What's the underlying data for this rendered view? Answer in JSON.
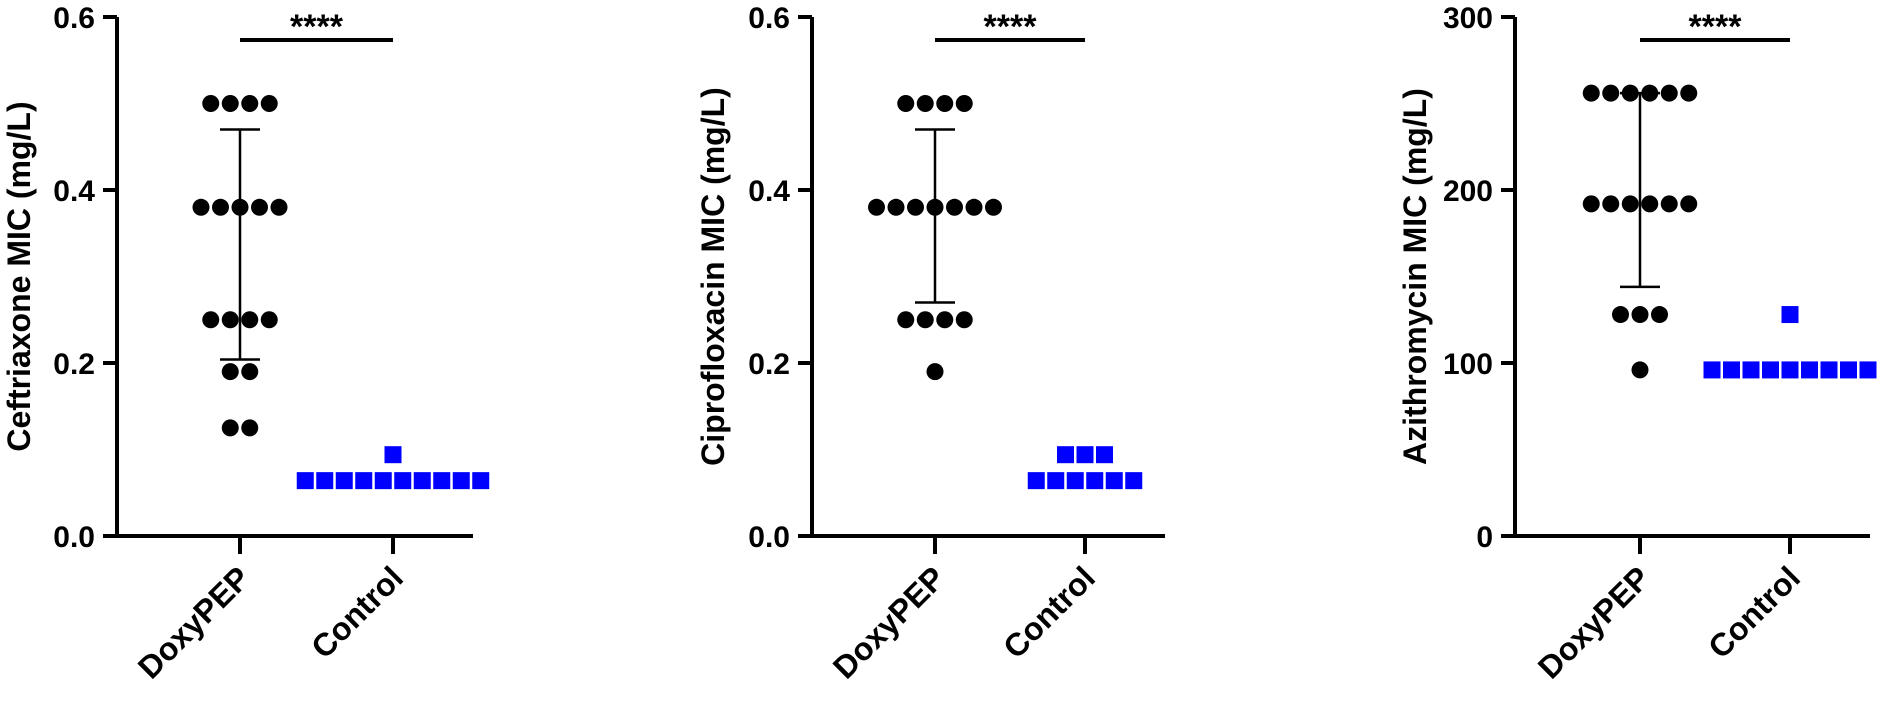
{
  "chart_data": [
    {
      "type": "scatter",
      "title": "",
      "xlabel": "",
      "ylabel": "Ceftriaxone MIC (mg/L)",
      "categories": [
        "DoxyPEP",
        "Control"
      ],
      "ylim": [
        0,
        0.6
      ],
      "yticks": [
        "0.0",
        "0.2",
        "0.4",
        "0.6"
      ],
      "significance": "****",
      "series": [
        {
          "category": "DoxyPEP",
          "marker": "circle",
          "color": "#000000",
          "values": [
            0.5,
            0.5,
            0.5,
            0.5,
            0.38,
            0.38,
            0.38,
            0.38,
            0.38,
            0.25,
            0.25,
            0.25,
            0.25,
            0.19,
            0.19,
            0.125,
            0.125
          ],
          "mean_sd": [
            0.337,
            0.204,
            0.47
          ]
        },
        {
          "category": "Control",
          "marker": "square",
          "color": "#0000ff",
          "values": [
            0.094,
            0.064,
            0.064,
            0.064,
            0.064,
            0.064,
            0.064,
            0.064,
            0.064,
            0.064,
            0.064
          ]
        }
      ]
    },
    {
      "type": "scatter",
      "title": "",
      "xlabel": "",
      "ylabel": "Ciprofloxacin MIC (mg/L)",
      "categories": [
        "DoxyPEP",
        "Control"
      ],
      "ylim": [
        0,
        0.6
      ],
      "yticks": [
        "0.0",
        "0.2",
        "0.4",
        "0.6"
      ],
      "significance": "****",
      "series": [
        {
          "category": "DoxyPEP",
          "marker": "circle",
          "color": "#000000",
          "values": [
            0.5,
            0.5,
            0.5,
            0.5,
            0.38,
            0.38,
            0.38,
            0.38,
            0.38,
            0.38,
            0.38,
            0.25,
            0.25,
            0.25,
            0.25,
            0.19
          ],
          "mean_sd": [
            0.37,
            0.27,
            0.47
          ]
        },
        {
          "category": "Control",
          "marker": "square",
          "color": "#0000ff",
          "values": [
            0.094,
            0.094,
            0.094,
            0.064,
            0.064,
            0.064,
            0.064,
            0.064,
            0.064
          ]
        }
      ]
    },
    {
      "type": "scatter",
      "title": "",
      "xlabel": "",
      "ylabel": "Azithromycin MIC (mg/L)",
      "categories": [
        "DoxyPEP",
        "Control"
      ],
      "ylim": [
        0,
        300
      ],
      "yticks": [
        "0",
        "100",
        "200",
        "300"
      ],
      "significance": "****",
      "series": [
        {
          "category": "DoxyPEP",
          "marker": "circle",
          "color": "#000000",
          "values": [
            256,
            256,
            256,
            256,
            256,
            256,
            192,
            192,
            192,
            192,
            192,
            192,
            128,
            128,
            128,
            96
          ],
          "mean_sd": [
            200,
            144,
            256
          ]
        },
        {
          "category": "Control",
          "marker": "square",
          "color": "#0000ff",
          "values": [
            128,
            96,
            96,
            96,
            96,
            96,
            96,
            96,
            96,
            96
          ]
        }
      ]
    }
  ]
}
